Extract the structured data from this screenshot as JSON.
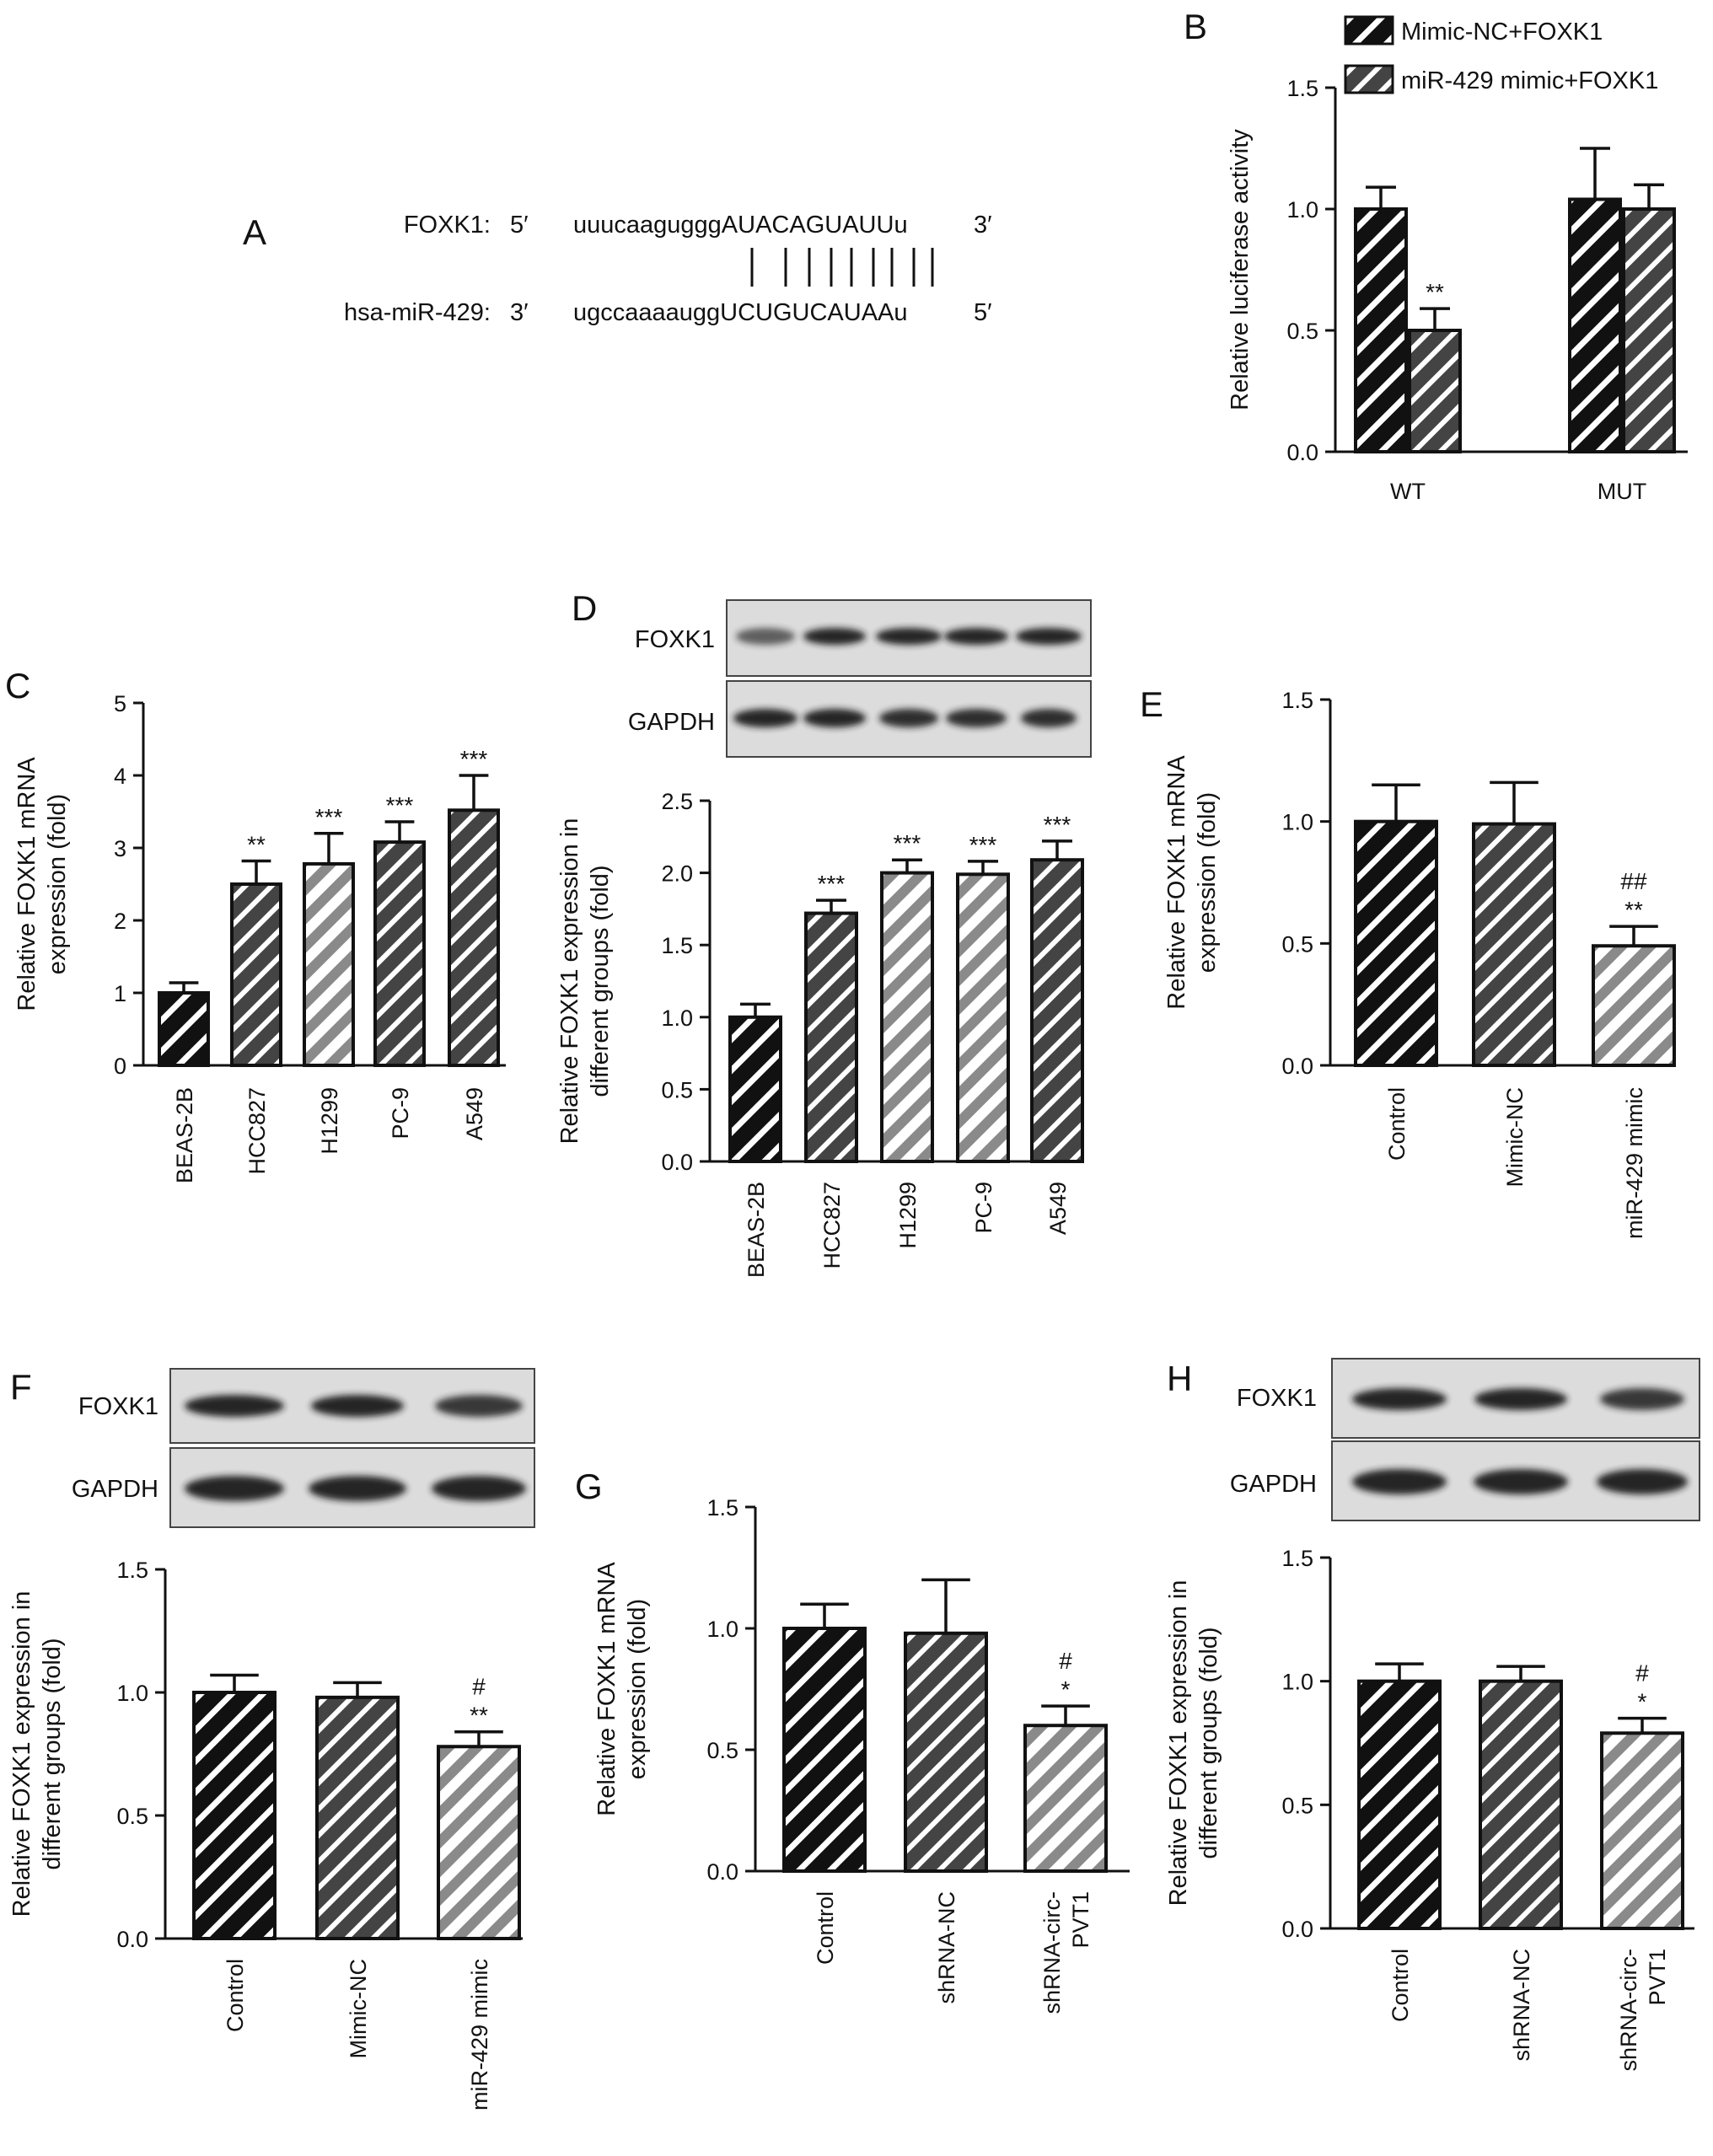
{
  "colors": {
    "bar_black": "#111111",
    "bar_dark": "#444444",
    "bar_light": "#8a8a8a",
    "stripe": "#ffffff",
    "axis": "#111111",
    "blot_bg": "#dcdcdc",
    "band": "#1a1a1a"
  },
  "panel_letters": [
    "A",
    "B",
    "C",
    "D",
    "E",
    "F",
    "G",
    "H"
  ],
  "sequences": {
    "foxk1_label": "FOXK1:",
    "foxk1_5": "5′",
    "foxk1_seq": "uuucaaguggg",
    "foxk1_seq_upper": "AUACAGUAUUu",
    "foxk1_3": "3′",
    "mir_label": "hsa-miR-429:",
    "mir_3": "3′",
    "mir_seq": "ugccaaaaugg",
    "mir_seq_upper": "UCUGUCAUAAu",
    "mir_5": "5′"
  },
  "blots": {
    "foxk1_label": "FOXK1",
    "gapdh_label": "GAPDH"
  },
  "chart_data": [
    {
      "panel": "B",
      "type": "bar",
      "categories": [
        "WT",
        "MUT"
      ],
      "series": [
        {
          "name": "Mimic-NC+FOXK1",
          "values": [
            1.0,
            1.04
          ],
          "errors": [
            0.09,
            0.21
          ],
          "sig": [
            "",
            ""
          ]
        },
        {
          "name": "miR-429 mimic+FOXK1",
          "values": [
            0.5,
            1.0
          ],
          "errors": [
            0.09,
            0.1
          ],
          "sig": [
            "**",
            ""
          ]
        }
      ],
      "ylabel": "Relative luciferase activity",
      "ylim": [
        0,
        1.5
      ],
      "yticks": [
        "0.0",
        "0.5",
        "1.0",
        "1.5"
      ],
      "legend": "top",
      "rotate_x": false
    },
    {
      "panel": "C",
      "type": "bar",
      "categories": [
        "BEAS-2B",
        "HCC827",
        "H1299",
        "PC-9",
        "A549"
      ],
      "values": [
        1.0,
        2.5,
        2.78,
        3.08,
        3.52
      ],
      "errors": [
        0.14,
        0.32,
        0.42,
        0.28,
        0.48
      ],
      "fills": [
        "black",
        "dark",
        "light",
        "dark",
        "dark"
      ],
      "sig": [
        [
          ""
        ],
        [
          "**"
        ],
        [
          "***"
        ],
        [
          "***"
        ],
        [
          "***"
        ]
      ],
      "ylabel": [
        "Relative FOXK1 mRNA",
        "expression (fold)"
      ],
      "ylim": [
        0,
        5
      ],
      "yticks": [
        "0",
        "1",
        "2",
        "3",
        "4",
        "5"
      ],
      "rotate_x": true
    },
    {
      "panel": "D",
      "type": "bar",
      "categories": [
        "BEAS-2B",
        "HCC827",
        "H1299",
        "PC-9",
        "A549"
      ],
      "values": [
        1.0,
        1.72,
        2.0,
        1.99,
        2.09
      ],
      "errors": [
        0.09,
        0.09,
        0.09,
        0.09,
        0.13
      ],
      "fills": [
        "black",
        "dark",
        "light",
        "light",
        "dark"
      ],
      "sig": [
        [
          ""
        ],
        [
          "***"
        ],
        [
          "***"
        ],
        [
          "***"
        ],
        [
          "***"
        ]
      ],
      "ylabel": [
        "Relative FOXK1 expression in",
        "different groups (fold)"
      ],
      "ylim": [
        0,
        2.5
      ],
      "yticks": [
        "0.0",
        "0.5",
        "1.0",
        "1.5",
        "2.0",
        "2.5"
      ],
      "rotate_x": true
    },
    {
      "panel": "E",
      "type": "bar",
      "categories": [
        "Control",
        "Mimic-NC",
        "miR-429 mimic"
      ],
      "values": [
        1.0,
        0.99,
        0.49
      ],
      "errors": [
        0.15,
        0.17,
        0.08
      ],
      "fills": [
        "black",
        "dark",
        "light"
      ],
      "sig": [
        [
          ""
        ],
        [
          ""
        ],
        [
          "**",
          "##"
        ]
      ],
      "ylabel": [
        "Relative FOXK1 mRNA",
        "expression (fold)"
      ],
      "ylim": [
        0,
        1.5
      ],
      "yticks": [
        "0.0",
        "0.5",
        "1.0",
        "1.5"
      ],
      "rotate_x": true
    },
    {
      "panel": "F",
      "type": "bar",
      "categories": [
        "Control",
        "Mimic-NC",
        "miR-429 mimic"
      ],
      "values": [
        1.0,
        0.98,
        0.78
      ],
      "errors": [
        0.07,
        0.06,
        0.06
      ],
      "fills": [
        "black",
        "dark",
        "light"
      ],
      "sig": [
        [
          ""
        ],
        [
          ""
        ],
        [
          "**",
          "#"
        ]
      ],
      "ylabel": [
        "Relative FOXK1 expression in",
        "different groups (fold)"
      ],
      "ylim": [
        0,
        1.5
      ],
      "yticks": [
        "0.0",
        "0.5",
        "1.0",
        "1.5"
      ],
      "rotate_x": true
    },
    {
      "panel": "G",
      "type": "bar",
      "categories": [
        "Control",
        "shRNA-NC",
        "shRNA-circ-\nPVT1"
      ],
      "values": [
        1.0,
        0.98,
        0.6
      ],
      "errors": [
        0.1,
        0.22,
        0.08
      ],
      "fills": [
        "black",
        "dark",
        "light"
      ],
      "sig": [
        [
          ""
        ],
        [
          ""
        ],
        [
          "*",
          "#"
        ]
      ],
      "ylabel": [
        "Relative FOXK1 mRNA",
        "expression (fold)"
      ],
      "ylim": [
        0,
        1.5
      ],
      "yticks": [
        "0.0",
        "0.5",
        "1.0",
        "1.5"
      ],
      "rotate_x": true
    },
    {
      "panel": "H",
      "type": "bar",
      "categories": [
        "Control",
        "shRNA-NC",
        "shRNA-circ-\nPVT1"
      ],
      "values": [
        1.0,
        1.0,
        0.79
      ],
      "errors": [
        0.07,
        0.06,
        0.06
      ],
      "fills": [
        "black",
        "dark",
        "light"
      ],
      "sig": [
        [
          ""
        ],
        [
          ""
        ],
        [
          "*",
          "#"
        ]
      ],
      "ylabel": [
        "Relative FOXK1 expression in",
        "different groups (fold)"
      ],
      "ylim": [
        0,
        1.5
      ],
      "yticks": [
        "0.0",
        "0.5",
        "1.0",
        "1.5"
      ],
      "rotate_x": true
    }
  ]
}
